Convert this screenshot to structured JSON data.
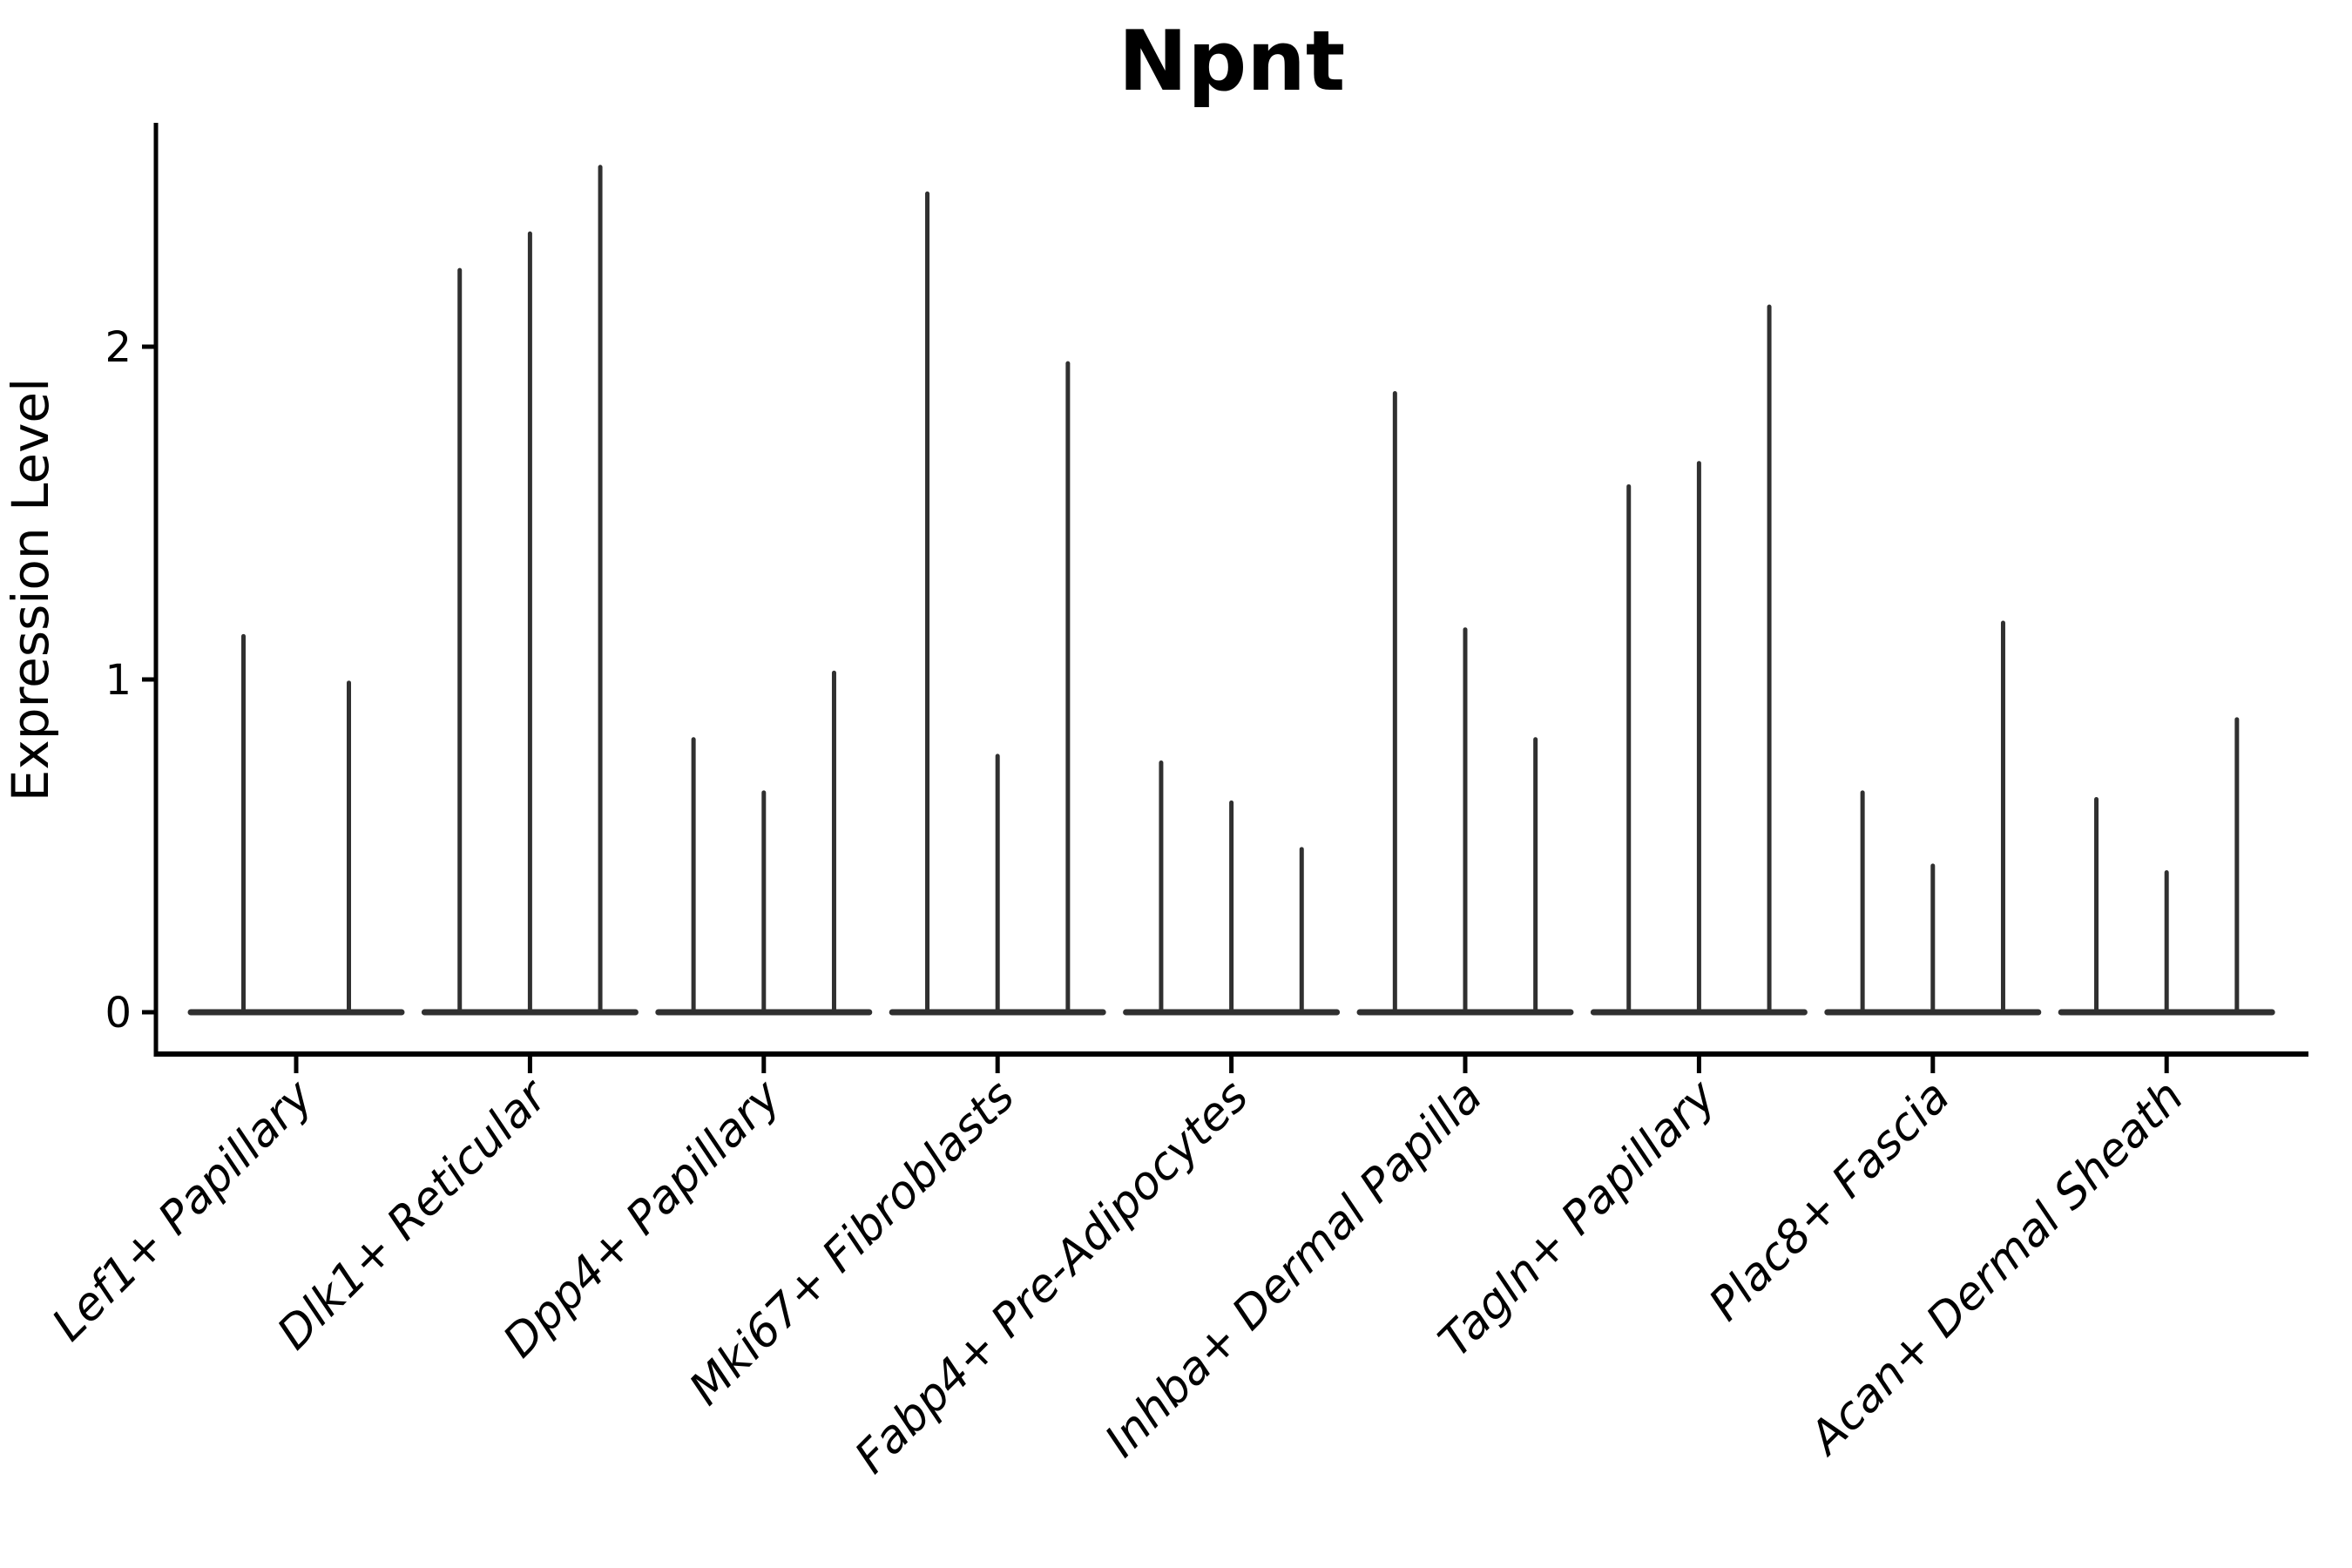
{
  "title": "Npnt",
  "ylabel": "Expression Level",
  "chart_data": {
    "type": "violin",
    "title": "Npnt",
    "xlabel": "",
    "ylabel": "Expression Level",
    "yticks": [
      0,
      1,
      2
    ],
    "ylim": [
      -0.13,
      2.67
    ],
    "grid": false,
    "legend": "none",
    "x_tick_rotation": 45,
    "description": "Collapsed violin plot of Npnt expression; each category shows thin violins (spikes) whose tops are the maximum expression values, with flat bodies at 0.",
    "categories": [
      "Lef1+ Papillary",
      "Dlk1+ Reticular",
      "Dpp4+ Papillary",
      "Mki67+ Fibroblasts",
      "Fabp4+ Pre-Adipocytes",
      "Inhba+ Dermal Papilla",
      "Tagln+ Papillary",
      "Plac8+ Fascia",
      "Acan+ Dermal Sheath"
    ],
    "series": [
      {
        "category": "Lef1+ Papillary",
        "violin_maxima": [
          1.13,
          0.99
        ]
      },
      {
        "category": "Dlk1+ Reticular",
        "violin_maxima": [
          2.23,
          2.34,
          2.54
        ]
      },
      {
        "category": "Dpp4+ Papillary",
        "violin_maxima": [
          0.82,
          0.66,
          1.02
        ]
      },
      {
        "category": "Mki67+ Fibroblasts",
        "violin_maxima": [
          2.46,
          0.77,
          1.95
        ]
      },
      {
        "category": "Fabp4+ Pre-Adipocytes",
        "violin_maxima": [
          0.75,
          0.63,
          0.49
        ]
      },
      {
        "category": "Inhba+ Dermal Papilla",
        "violin_maxima": [
          1.86,
          1.15,
          0.82
        ]
      },
      {
        "category": "Tagln+ Papillary",
        "violin_maxima": [
          1.58,
          1.65,
          2.12
        ]
      },
      {
        "category": "Plac8+ Fascia",
        "violin_maxima": [
          0.66,
          0.44,
          1.17
        ]
      },
      {
        "category": "Acan+ Dermal Sheath",
        "violin_maxima": [
          0.64,
          0.42,
          0.88
        ]
      }
    ]
  },
  "style": {
    "violin_color": "#303030",
    "axis_color": "#000000",
    "background": "#ffffff"
  }
}
